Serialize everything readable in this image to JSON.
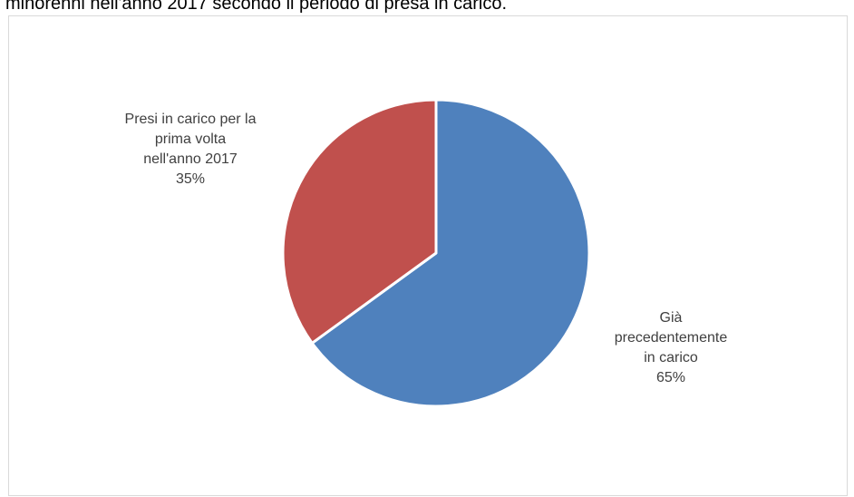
{
  "header": {
    "caption": "minorenni nell'anno 2017 secondo il periodo di presa in carico."
  },
  "chart_data": {
    "type": "pie",
    "title": "",
    "slices": [
      {
        "label_lines": [
          "Già",
          "precedentemente",
          "in carico"
        ],
        "value": 65,
        "value_label": "65%",
        "color": "#4f81bd"
      },
      {
        "label_lines": [
          "Presi in carico per la",
          "prima volta",
          "nell'anno 2017"
        ],
        "value": 35,
        "value_label": "35%",
        "color": "#c0504d"
      }
    ],
    "start": "12 o'clock",
    "direction": "clockwise",
    "legend": "none"
  }
}
